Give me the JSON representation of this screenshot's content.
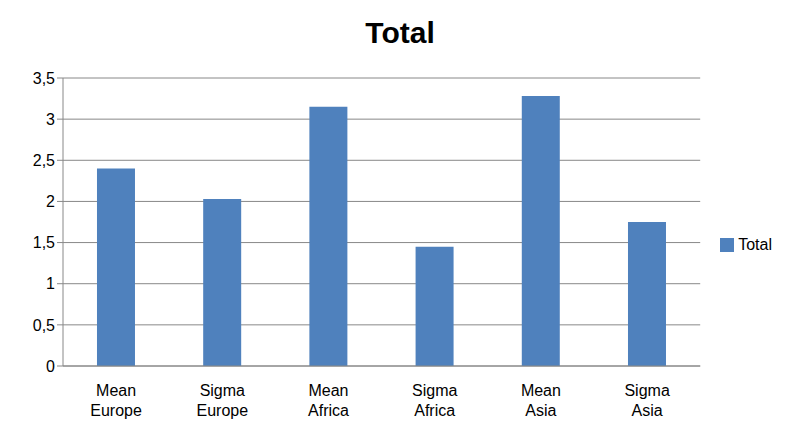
{
  "chart_data": {
    "type": "bar",
    "title": "Total",
    "categories": [
      "Mean Europe",
      "Sigma Europe",
      "Mean Africa",
      "Sigma Africa",
      "Mean Asia",
      "Sigma Asia"
    ],
    "series": [
      {
        "name": "Total",
        "color": "#4f81bd",
        "values": [
          2.4,
          2.03,
          3.15,
          1.45,
          3.28,
          1.75
        ]
      }
    ],
    "ylim": [
      0,
      3.5
    ],
    "yticks": [
      0,
      {
        "value": 0.5,
        "label": "0,5"
      },
      1,
      {
        "value": 1.5,
        "label": "1,5"
      },
      2,
      {
        "value": 2.5,
        "label": "2,5"
      },
      3,
      {
        "value": 3.5,
        "label": "3,5"
      }
    ],
    "grid": true,
    "legend": "right"
  }
}
